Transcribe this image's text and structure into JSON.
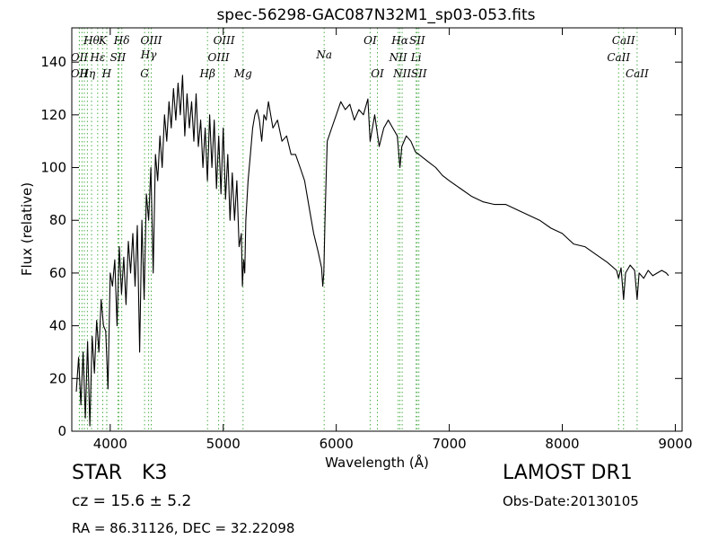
{
  "chart_data": {
    "type": "line",
    "title": "spec-56298-GAC087N32M1_sp03-053.fits",
    "xlabel": "Wavelength (Å)",
    "ylabel": "Flux (relative)",
    "xlim": [
      3660,
      9060
    ],
    "ylim": [
      0,
      153
    ],
    "xticks": [
      4000,
      5000,
      6000,
      7000,
      8000,
      9000
    ],
    "yticks": [
      0,
      20,
      40,
      60,
      80,
      100,
      120,
      140
    ],
    "grid": false,
    "line_color": "#000000",
    "marker_color": "#4daf4a",
    "series": [
      {
        "x": [
          3700,
          3720,
          3740,
          3760,
          3780,
          3800,
          3820,
          3840,
          3860,
          3880,
          3900,
          3920,
          3940,
          3960,
          3980,
          4000,
          4020,
          4040,
          4060,
          4080,
          4100,
          4120,
          4140,
          4160,
          4180,
          4200,
          4220,
          4240,
          4260,
          4280,
          4300,
          4320,
          4340,
          4360,
          4380,
          4400,
          4420,
          4440,
          4460,
          4480,
          4500,
          4520,
          4540,
          4560,
          4580,
          4600,
          4620,
          4640,
          4660,
          4680,
          4700,
          4720,
          4740,
          4760,
          4780,
          4800,
          4820,
          4840,
          4860,
          4880,
          4900,
          4920,
          4940,
          4960,
          4980,
          5000,
          5020,
          5040,
          5060,
          5080,
          5100,
          5120,
          5140,
          5160,
          5170,
          5180,
          5190,
          5200,
          5220,
          5240,
          5260,
          5280,
          5300,
          5320,
          5340,
          5360,
          5380,
          5400,
          5440,
          5480,
          5520,
          5560,
          5600,
          5640,
          5680,
          5720,
          5760,
          5800,
          5840,
          5870,
          5880,
          5890,
          5900,
          5910,
          5920,
          5960,
          6000,
          6040,
          6080,
          6120,
          6160,
          6200,
          6240,
          6280,
          6300,
          6340,
          6380,
          6420,
          6460,
          6500,
          6540,
          6563,
          6580,
          6620,
          6660,
          6700,
          6760,
          6820,
          6880,
          6940,
          7000,
          7100,
          7200,
          7300,
          7400,
          7500,
          7600,
          7700,
          7800,
          7900,
          8000,
          8100,
          8200,
          8300,
          8400,
          8480,
          8498,
          8520,
          8542,
          8560,
          8600,
          8640,
          8662,
          8680,
          8720,
          8760,
          8800,
          8840,
          8880,
          8920,
          8940
        ],
        "values": [
          15,
          28,
          10,
          30,
          5,
          34,
          2,
          36,
          22,
          42,
          30,
          50,
          40,
          38,
          16,
          60,
          55,
          65,
          40,
          70,
          52,
          66,
          48,
          72,
          60,
          75,
          55,
          78,
          30,
          80,
          50,
          90,
          80,
          100,
          60,
          105,
          95,
          112,
          100,
          120,
          110,
          125,
          115,
          130,
          118,
          132,
          120,
          135,
          112,
          128,
          115,
          125,
          110,
          128,
          108,
          118,
          100,
          115,
          95,
          120,
          100,
          118,
          92,
          112,
          90,
          115,
          88,
          105,
          80,
          98,
          80,
          95,
          70,
          75,
          55,
          65,
          60,
          80,
          95,
          105,
          115,
          120,
          122,
          118,
          110,
          120,
          118,
          125,
          115,
          118,
          110,
          112,
          105,
          105,
          100,
          95,
          85,
          75,
          68,
          62,
          55,
          60,
          80,
          95,
          110,
          115,
          120,
          125,
          122,
          124,
          118,
          122,
          120,
          126,
          110,
          120,
          108,
          115,
          118,
          115,
          112,
          100,
          108,
          112,
          110,
          106,
          104,
          102,
          100,
          97,
          95,
          92,
          89,
          87,
          86,
          86,
          84,
          82,
          80,
          77,
          75,
          71,
          70,
          67,
          64,
          61,
          58,
          62,
          50,
          60,
          63,
          61,
          50,
          60,
          58,
          61,
          59,
          60,
          61,
          60,
          59
        ]
      }
    ],
    "line_markers": [
      {
        "x": 3727,
        "label": "OII",
        "row": "upper"
      },
      {
        "x": 3727,
        "label": "OII",
        "row": "lower"
      },
      {
        "x": 3750,
        "label": "",
        "row": "none"
      },
      {
        "x": 3771,
        "label": "",
        "row": "none"
      },
      {
        "x": 3798,
        "label": "Hη",
        "row": "lower"
      },
      {
        "x": 3835,
        "label": "Hθ",
        "row": "top"
      },
      {
        "x": 3889,
        "label": "Hε",
        "row": "upper"
      },
      {
        "x": 3934,
        "label": "K",
        "row": "top"
      },
      {
        "x": 3969,
        "label": "H",
        "row": "lower"
      },
      {
        "x": 3970,
        "label": "",
        "row": "none"
      },
      {
        "x": 4068,
        "label": "SII",
        "row": "upper"
      },
      {
        "x": 4076,
        "label": "",
        "row": "none"
      },
      {
        "x": 4102,
        "label": "Hδ",
        "row": "top"
      },
      {
        "x": 4304,
        "label": "G",
        "row": "lower"
      },
      {
        "x": 4340,
        "label": "Hγ",
        "row": "mid"
      },
      {
        "x": 4363,
        "label": "OIII",
        "row": "top"
      },
      {
        "x": 4861,
        "label": "Hβ",
        "row": "lower"
      },
      {
        "x": 4959,
        "label": "OIII",
        "row": "upper"
      },
      {
        "x": 5007,
        "label": "OIII",
        "row": "top"
      },
      {
        "x": 5175,
        "label": "Mg",
        "row": "lower"
      },
      {
        "x": 5893,
        "label": "Na",
        "row": "mid"
      },
      {
        "x": 6300,
        "label": "OI",
        "row": "top"
      },
      {
        "x": 6364,
        "label": "OI",
        "row": "lower"
      },
      {
        "x": 6548,
        "label": "NII",
        "row": "upper"
      },
      {
        "x": 6563,
        "label": "Hα",
        "row": "top"
      },
      {
        "x": 6583,
        "label": "NII",
        "row": "lower"
      },
      {
        "x": 6707,
        "label": "Li",
        "row": "upper"
      },
      {
        "x": 6716,
        "label": "SII",
        "row": "top"
      },
      {
        "x": 6731,
        "label": "SII",
        "row": "lower"
      },
      {
        "x": 8498,
        "label": "CaII",
        "row": "upper"
      },
      {
        "x": 8542,
        "label": "CaII",
        "row": "top"
      },
      {
        "x": 8662,
        "label": "CaII",
        "row": "lower"
      }
    ]
  },
  "info": {
    "object_class": "STAR",
    "subclass": "K3",
    "survey": "LAMOST DR1",
    "cz": "cz = 15.6  ± 5.2",
    "obs_date": "Obs-Date:20130105",
    "radec": "RA = 86.31126, DEC = 32.22098"
  }
}
